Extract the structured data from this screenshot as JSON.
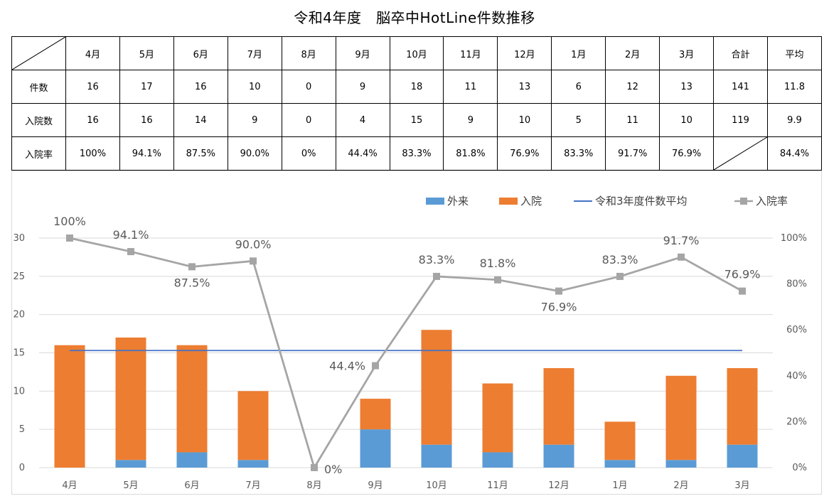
{
  "title": "令和4年度　脳卒中HotLine件数推移",
  "table": {
    "columns": [
      "4月",
      "5月",
      "6月",
      "7月",
      "8月",
      "9月",
      "10月",
      "11月",
      "12月",
      "1月",
      "2月",
      "3月",
      "合計",
      "平均"
    ],
    "rows": [
      {
        "label": "件数",
        "cells": [
          "16",
          "17",
          "16",
          "10",
          "0",
          "9",
          "18",
          "11",
          "13",
          "6",
          "12",
          "13",
          "141",
          "11.8"
        ]
      },
      {
        "label": "入院数",
        "cells": [
          "16",
          "16",
          "14",
          "9",
          "0",
          "4",
          "15",
          "9",
          "10",
          "5",
          "11",
          "10",
          "119",
          "9.9"
        ]
      },
      {
        "label": "入院率",
        "cells": [
          "100%",
          "94.1%",
          "87.5%",
          "90.0%",
          "0%",
          "44.4%",
          "83.3%",
          "81.8%",
          "76.9%",
          "83.3%",
          "91.7%",
          "76.9%",
          "",
          "84.4%"
        ]
      }
    ]
  },
  "chart_data": {
    "type": "bar",
    "stacked": true,
    "categories": [
      "4月",
      "5月",
      "6月",
      "7月",
      "8月",
      "9月",
      "10月",
      "11月",
      "12月",
      "1月",
      "2月",
      "3月"
    ],
    "series": [
      {
        "name": "外来",
        "kind": "bar",
        "axis": "left",
        "color": "#5B9BD5",
        "values": [
          0,
          1,
          2,
          1,
          0,
          5,
          3,
          2,
          3,
          1,
          1,
          3
        ]
      },
      {
        "name": "入院",
        "kind": "bar",
        "axis": "left",
        "color": "#ED7D31",
        "values": [
          16,
          16,
          14,
          9,
          0,
          4,
          15,
          9,
          10,
          5,
          11,
          10
        ]
      },
      {
        "name": "令和3年度件数平均",
        "kind": "line",
        "axis": "left",
        "color": "#4472C4",
        "values": [
          15.3,
          15.3,
          15.3,
          15.3,
          15.3,
          15.3,
          15.3,
          15.3,
          15.3,
          15.3,
          15.3,
          15.3
        ]
      },
      {
        "name": "入院率",
        "kind": "line",
        "axis": "right",
        "color": "#A5A5A5",
        "values": [
          100,
          94.1,
          87.5,
          90.0,
          0,
          44.4,
          83.3,
          81.8,
          76.9,
          83.3,
          91.7,
          76.9
        ]
      }
    ],
    "rate_labels": [
      "100%",
      "94.1%",
      "87.5%",
      "90.0%",
      "0%",
      "44.4%",
      "83.3%",
      "81.8%",
      "76.9%",
      "83.3%",
      "91.7%",
      "76.9%"
    ],
    "left_axis": {
      "ylim": [
        0,
        30
      ],
      "ticks": [
        "0",
        "5",
        "10",
        "15",
        "20",
        "25",
        "30"
      ]
    },
    "right_axis": {
      "ylim": [
        0,
        100
      ],
      "ticks": [
        "0%",
        "20%",
        "40%",
        "60%",
        "80%",
        "100%"
      ]
    },
    "legend_position": "top-right",
    "grid": true
  }
}
